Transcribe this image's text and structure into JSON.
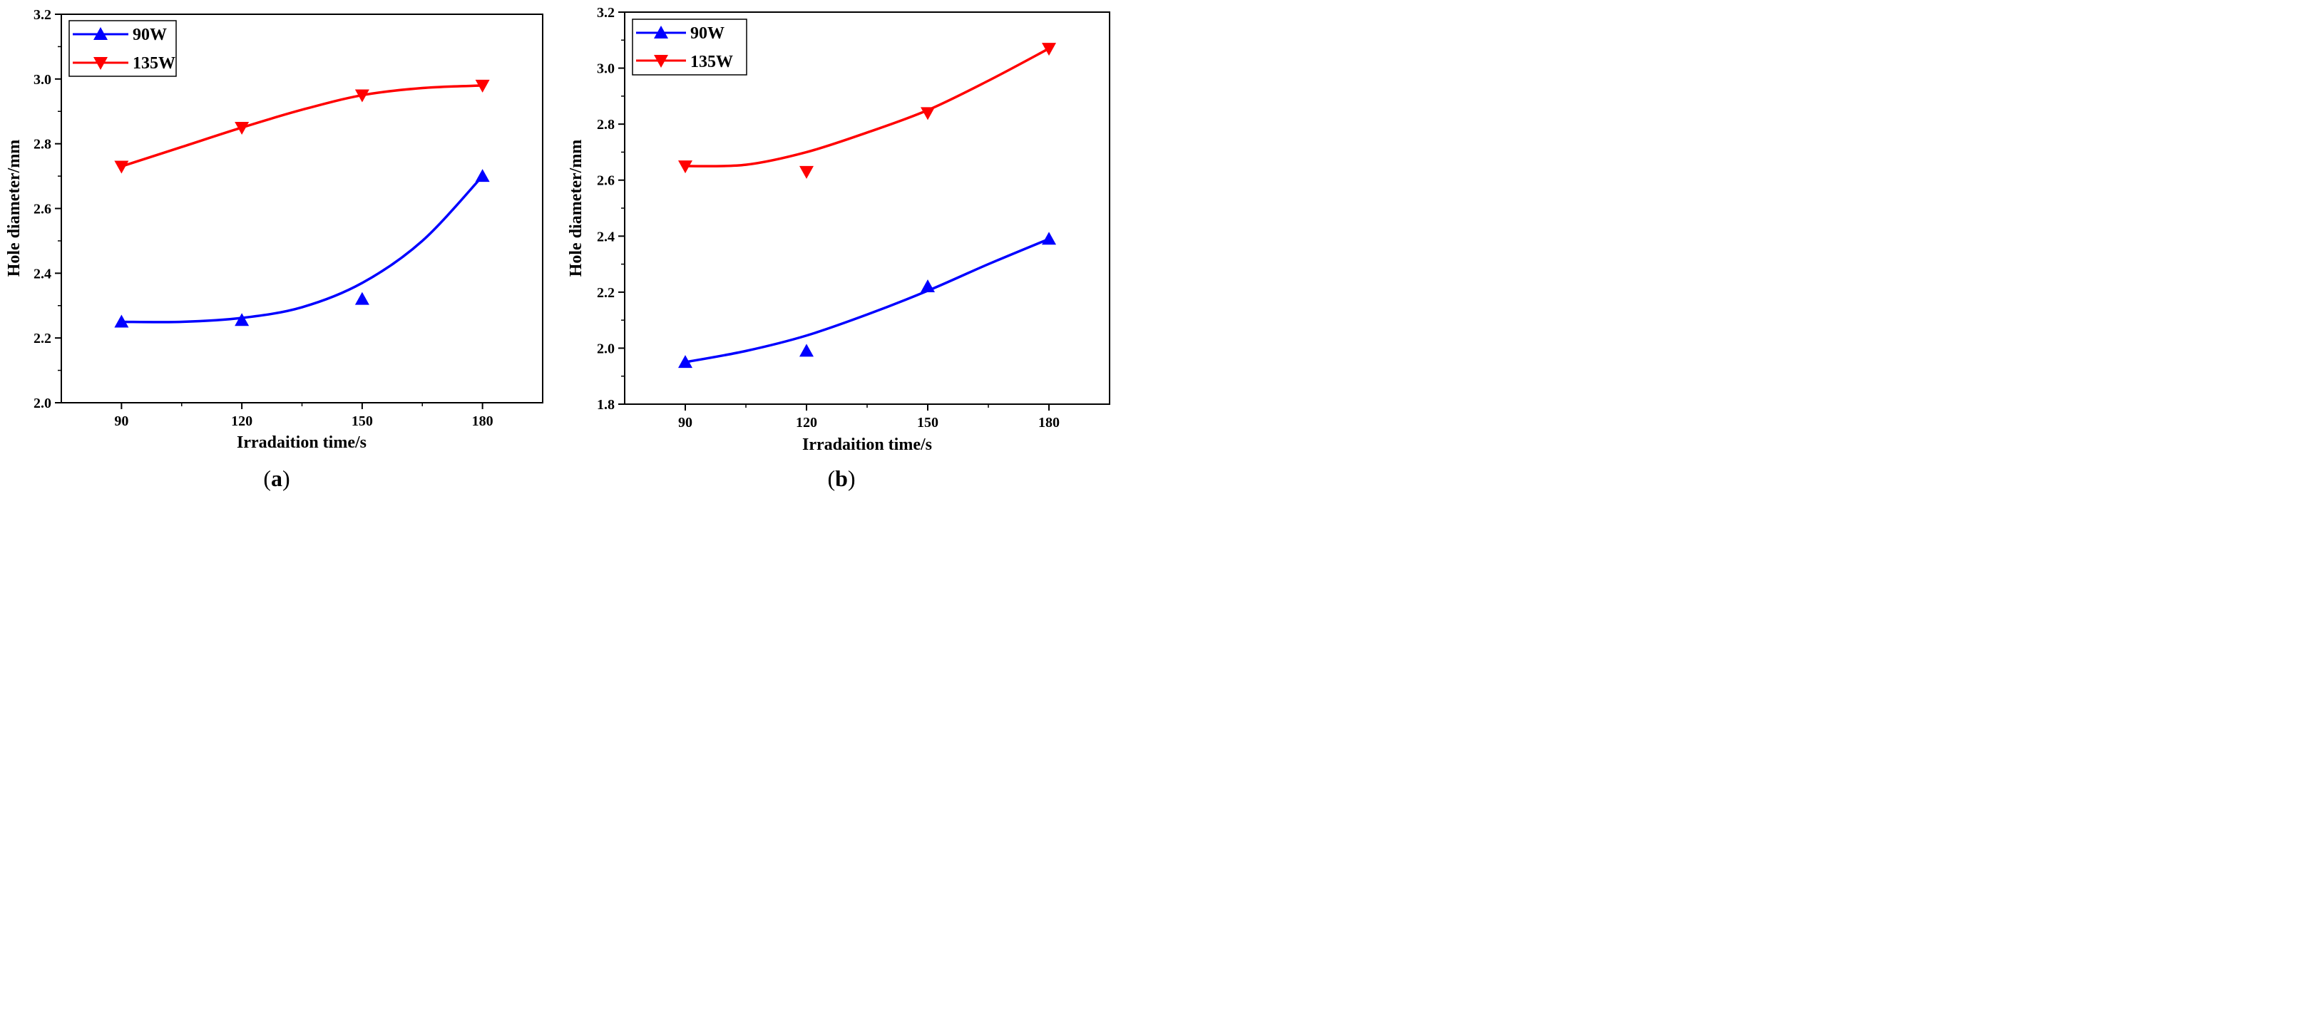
{
  "figure": {
    "panels": [
      "a",
      "b"
    ]
  },
  "chart_data": [
    {
      "type": "line",
      "panel_label": "a",
      "xlabel": "Irradaition time/s",
      "ylabel": "Hole diameter/mm",
      "x": [
        90,
        120,
        150,
        180
      ],
      "xlim": [
        75,
        195
      ],
      "ylim": [
        2.0,
        3.2
      ],
      "xticks": [
        90,
        120,
        150,
        180
      ],
      "yticks": [
        2.0,
        2.2,
        2.4,
        2.6,
        2.8,
        3.0,
        3.2
      ],
      "legend_position": "top-left",
      "series": [
        {
          "name": "90W",
          "marker": "triangle-up",
          "color": "#0000ff",
          "values": [
            2.25,
            2.255,
            2.32,
            2.7
          ],
          "fit_x": [
            90,
            105,
            120,
            135,
            150,
            165,
            180
          ],
          "fit_y": [
            2.25,
            2.25,
            2.262,
            2.295,
            2.37,
            2.5,
            2.7
          ]
        },
        {
          "name": "135W",
          "marker": "triangle-down",
          "color": "#ff0000",
          "values": [
            2.73,
            2.85,
            2.95,
            2.98
          ],
          "fit_x": [
            90,
            105,
            120,
            135,
            150,
            165,
            180
          ],
          "fit_y": [
            2.73,
            2.79,
            2.85,
            2.905,
            2.95,
            2.972,
            2.98
          ]
        }
      ]
    },
    {
      "type": "line",
      "panel_label": "b",
      "xlabel": "Irradaition time/s",
      "ylabel": "Hole diameter/mm",
      "x": [
        90,
        120,
        150,
        180
      ],
      "xlim": [
        75,
        195
      ],
      "ylim": [
        1.8,
        3.2
      ],
      "xticks": [
        90,
        120,
        150,
        180
      ],
      "yticks": [
        1.8,
        2.0,
        2.2,
        2.4,
        2.6,
        2.8,
        3.0,
        3.2
      ],
      "legend_position": "top-left",
      "series": [
        {
          "name": "90W",
          "marker": "triangle-up",
          "color": "#0000ff",
          "values": [
            1.95,
            1.99,
            2.22,
            2.39
          ],
          "fit_x": [
            90,
            105,
            120,
            135,
            150,
            165,
            180
          ],
          "fit_y": [
            1.95,
            1.99,
            2.045,
            2.12,
            2.205,
            2.3,
            2.39
          ]
        },
        {
          "name": "135W",
          "marker": "triangle-down",
          "color": "#ff0000",
          "values": [
            2.65,
            2.63,
            2.84,
            3.07
          ],
          "fit_x": [
            90,
            105,
            120,
            135,
            150,
            165,
            180
          ],
          "fit_y": [
            2.65,
            2.655,
            2.7,
            2.77,
            2.85,
            2.955,
            3.07
          ]
        }
      ]
    }
  ]
}
